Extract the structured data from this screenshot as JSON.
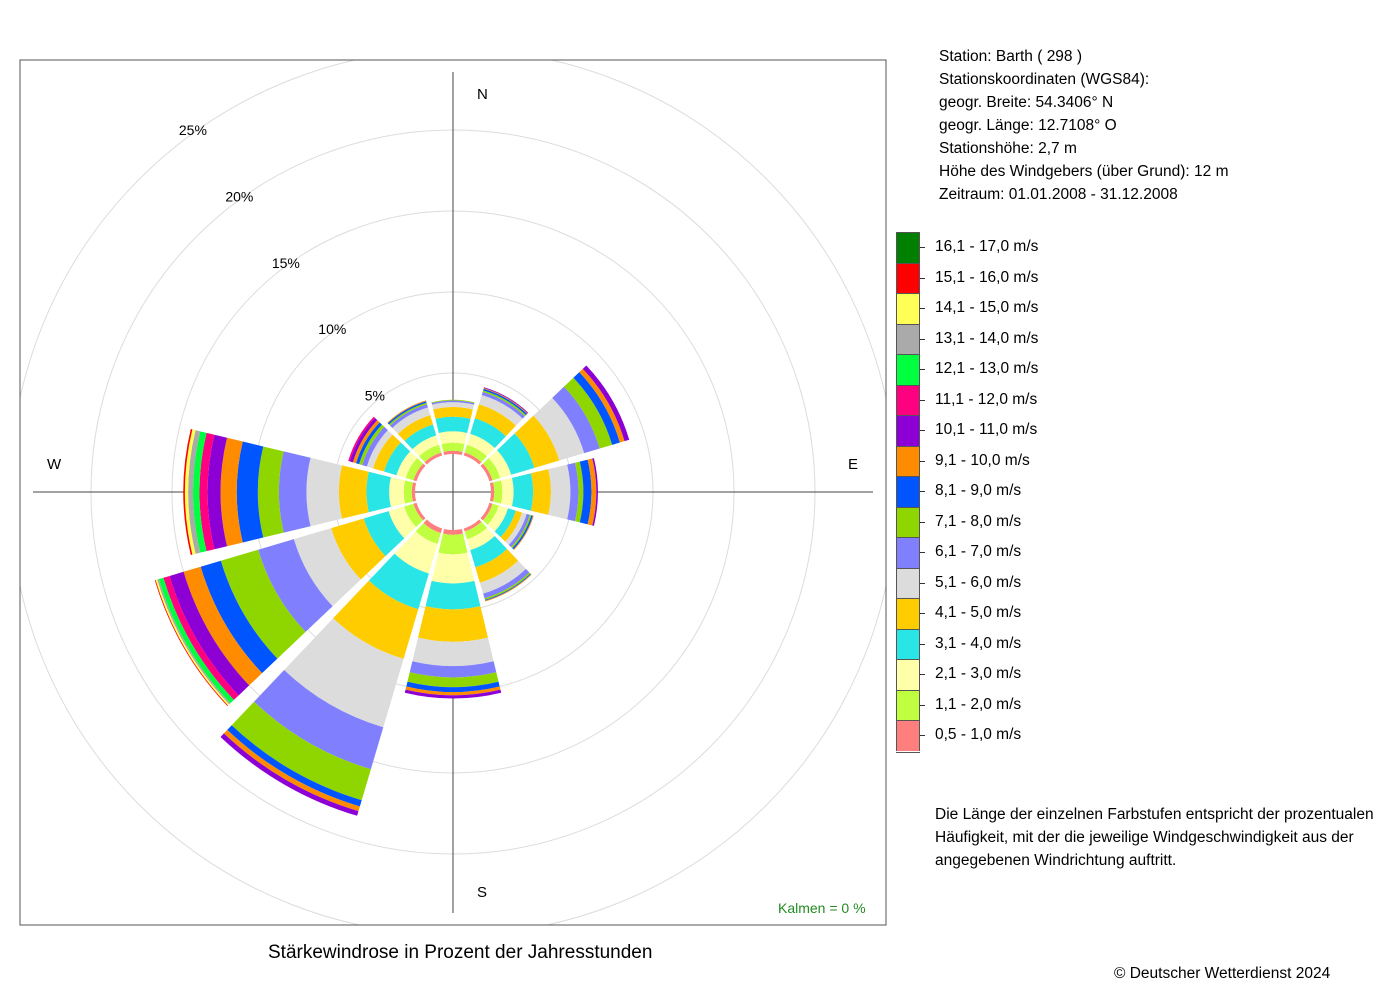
{
  "station": {
    "line1": "Station:  Barth  ( 298 )",
    "line2": "Stationskoordinaten (WGS84):",
    "line3": "geogr. Breite: 54.3406° N",
    "line4": "geogr. Länge: 12.7108° O",
    "line5": "Stationshöhe: 2,7 m",
    "line6": "Höhe des Windgebers (über Grund): 12 m",
    "line7": "Zeitraum: 01.01.2008 - 31.12.2008"
  },
  "legend_items": [
    {
      "label": "16,1 - 17,0 m/s",
      "color": "#007F00"
    },
    {
      "label": "15,1 - 16,0 m/s",
      "color": "#FF0000"
    },
    {
      "label": "14,1 - 15,0 m/s",
      "color": "#FFFF55"
    },
    {
      "label": "13,1 - 14,0 m/s",
      "color": "#AAAAAA"
    },
    {
      "label": "12,1 - 13,0 m/s",
      "color": "#00FF3F"
    },
    {
      "label": "11,1 - 12,0 m/s",
      "color": "#FF0080"
    },
    {
      "label": "10,1 - 11,0 m/s",
      "color": "#8C00D6"
    },
    {
      "label": "9,1 - 10,0 m/s",
      "color": "#FF8C00"
    },
    {
      "label": "8,1 - 9,0 m/s",
      "color": "#0055FF"
    },
    {
      "label": "7,1 - 8,0 m/s",
      "color": "#8FD600"
    },
    {
      "label": "6,1 - 7,0 m/s",
      "color": "#8080FF"
    },
    {
      "label": "5,1 - 6,0 m/s",
      "color": "#DCDCDC"
    },
    {
      "label": "4,1 - 5,0 m/s",
      "color": "#FFCC00"
    },
    {
      "label": "3,1 - 4,0 m/s",
      "color": "#2AE5E5"
    },
    {
      "label": "2,1 - 3,0 m/s",
      "color": "#FFFFAA"
    },
    {
      "label": "1,1 - 2,0 m/s",
      "color": "#BFFF3F"
    },
    {
      "label": "0,5 - 1,0 m/s",
      "color": "#FF7F7F"
    }
  ],
  "note": "Die Länge der einzelnen Farbstufen entspricht der prozentualen Häufigkeit, mit der die jeweilige Windgeschwindigkeit aus der angegebenen Windrichtung auftritt.",
  "title": "Stärkewindrose in Prozent der Jahresstunden",
  "copyright": "© Deutscher Wetterdienst  2024",
  "chart_data": {
    "type": "windrose",
    "title": "Stärkewindrose in Prozent der Jahresstunden",
    "directions": {
      "N": "N",
      "E": "E",
      "S": "S",
      "W": "W"
    },
    "ring_labels": [
      "5%",
      "10%",
      "15%",
      "20%",
      "25%"
    ],
    "calm_label": "Kalmen  =  0 %",
    "calm_color": "#228B22",
    "sector_angles_deg": [
      0,
      30,
      60,
      90,
      120,
      150,
      180,
      210,
      240,
      270,
      300,
      330
    ],
    "speed_classes": [
      "0,5 - 1,0 m/s",
      "1,1 - 2,0 m/s",
      "2,1 - 3,0 m/s",
      "3,1 - 4,0 m/s",
      "4,1 - 5,0 m/s",
      "5,1 - 6,0 m/s",
      "6,1 - 7,0 m/s",
      "7,1 - 8,0 m/s",
      "8,1 - 9,0 m/s",
      "9,1 - 10,0 m/s",
      "10,1 - 11,0 m/s",
      "11,1 - 12,0 m/s",
      "12,1 - 13,0 m/s",
      "13,1 - 14,0 m/s",
      "14,1 - 15,0 m/s",
      "15,1 - 16,0 m/s",
      "16,1 - 17,0 m/s"
    ],
    "sector_values_percent": [
      [
        0.2,
        0.5,
        0.7,
        0.9,
        0.6,
        0.3,
        0.1,
        0.05,
        0,
        0,
        0,
        0,
        0,
        0,
        0,
        0,
        0
      ],
      [
        0.2,
        0.5,
        0.7,
        1.0,
        0.9,
        0.6,
        0.2,
        0.1,
        0.1,
        0.05,
        0.05,
        0,
        0,
        0,
        0,
        0,
        0
      ],
      [
        0.2,
        0.5,
        0.7,
        1.5,
        1.6,
        1.6,
        1.0,
        0.8,
        0.5,
        0.3,
        0.3,
        0,
        0,
        0,
        0,
        0,
        0
      ],
      [
        0.2,
        0.5,
        0.7,
        1.2,
        1.1,
        1.2,
        0.5,
        0.3,
        0.5,
        0.3,
        0.1,
        0,
        0,
        0,
        0,
        0,
        0
      ],
      [
        0.2,
        0.4,
        0.6,
        0.5,
        0.4,
        0.3,
        0.2,
        0.1,
        0.1,
        0.05,
        0,
        0,
        0,
        0,
        0,
        0,
        0
      ],
      [
        0.2,
        0.5,
        0.7,
        1.1,
        1.0,
        0.7,
        0.3,
        0.1,
        0.05,
        0.05,
        0,
        0,
        0,
        0,
        0,
        0,
        0
      ],
      [
        0.3,
        1.2,
        1.8,
        1.6,
        2.0,
        1.5,
        0.7,
        0.6,
        0.3,
        0.2,
        0.2,
        0,
        0,
        0,
        0,
        0,
        0
      ],
      [
        0.3,
        0.7,
        1.9,
        2.3,
        3.2,
        4.4,
        2.7,
        2.0,
        0.4,
        0.3,
        0.3,
        0,
        0,
        0,
        0,
        0,
        0
      ],
      [
        0.2,
        0.6,
        1.0,
        1.6,
        2.1,
        2.4,
        2.3,
        2.4,
        1.3,
        1.1,
        0.9,
        0.4,
        0.3,
        0.1,
        0.1,
        0.05,
        0
      ],
      [
        0.2,
        0.5,
        0.9,
        1.4,
        1.7,
        2.0,
        1.7,
        1.3,
        1.3,
        1.0,
        0.8,
        0.5,
        0.4,
        0.3,
        0.2,
        0.1,
        0
      ],
      [
        0.2,
        0.5,
        0.6,
        0.8,
        0.7,
        0.4,
        0.3,
        0.2,
        0.2,
        0.2,
        0.2,
        0.1,
        0,
        0,
        0,
        0,
        0
      ],
      [
        0.2,
        0.5,
        0.6,
        0.7,
        0.6,
        0.5,
        0.2,
        0.1,
        0.1,
        0.05,
        0,
        0,
        0,
        0,
        0,
        0,
        0
      ]
    ]
  }
}
